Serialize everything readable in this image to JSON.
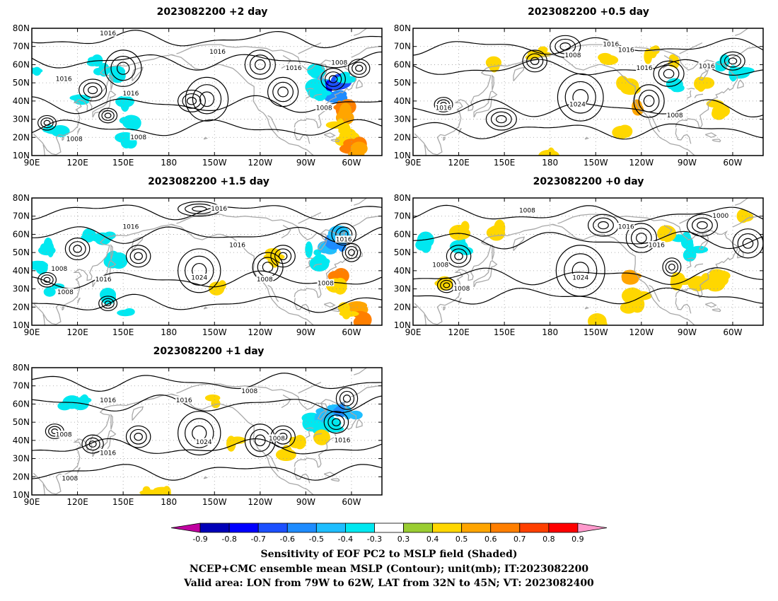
{
  "panels": [
    {
      "title": "2023082200 +2 day",
      "contour_labels": [
        "1016",
        "1016",
        "1016",
        "1016",
        "1008",
        "1008",
        "1008",
        "1016",
        "1008"
      ],
      "sensitivity": [
        {
          "lon": 135,
          "lat": 57,
          "v": -0.4
        },
        {
          "lon": 130,
          "lat": 62,
          "v": -0.4
        },
        {
          "lon": 145,
          "lat": 55,
          "v": -0.4
        },
        {
          "lon": 92,
          "lat": 55,
          "v": -0.4
        },
        {
          "lon": 155,
          "lat": 28,
          "v": -0.4
        },
        {
          "lon": 154,
          "lat": 18,
          "v": -0.4
        },
        {
          "lon": 105,
          "lat": 25,
          "v": -0.4
        },
        {
          "lon": 120,
          "lat": 40,
          "v": -0.4
        },
        {
          "lon": 148,
          "lat": 38,
          "v": -0.4
        },
        {
          "lon": -85,
          "lat": 55,
          "v": -0.4
        },
        {
          "lon": -78,
          "lat": 50,
          "v": -0.5
        },
        {
          "lon": -74,
          "lat": 44,
          "v": -0.6
        },
        {
          "lon": -72,
          "lat": 47,
          "v": -0.8
        },
        {
          "lon": -68,
          "lat": 50,
          "v": -0.7
        },
        {
          "lon": -70,
          "lat": 42,
          "v": -0.6
        },
        {
          "lon": -63,
          "lat": 54,
          "v": -0.4
        },
        {
          "lon": -82,
          "lat": 46,
          "v": -0.4
        },
        {
          "lon": -65,
          "lat": 36,
          "v": 0.6
        },
        {
          "lon": -62,
          "lat": 33,
          "v": 0.5
        },
        {
          "lon": -68,
          "lat": 25,
          "v": 0.4
        },
        {
          "lon": -63,
          "lat": 20,
          "v": 0.4
        },
        {
          "lon": -58,
          "lat": 15,
          "v": 0.6
        },
        {
          "lon": -55,
          "lat": 12,
          "v": 0.5
        }
      ]
    },
    {
      "title": "2023082200 +0.5 day",
      "contour_labels": [
        "1016",
        "1008",
        "1016",
        "1016",
        "1024",
        "1016",
        "1008",
        "1016"
      ],
      "sensitivity": [
        {
          "lon": -65,
          "lat": 60,
          "v": -0.4
        },
        {
          "lon": -56,
          "lat": 55,
          "v": -0.4
        },
        {
          "lon": -95,
          "lat": 48,
          "v": -0.4
        },
        {
          "lon": -80,
          "lat": 48,
          "v": 0.4
        },
        {
          "lon": -72,
          "lat": 38,
          "v": 0.4
        },
        {
          "lon": -68,
          "lat": 34,
          "v": 0.4
        },
        {
          "lon": -122,
          "lat": 35,
          "v": 0.5
        },
        {
          "lon": -130,
          "lat": 48,
          "v": 0.4
        },
        {
          "lon": -112,
          "lat": 66,
          "v": 0.4
        },
        {
          "lon": -145,
          "lat": 62,
          "v": 0.4
        },
        {
          "lon": 172,
          "lat": 66,
          "v": 0.4
        },
        {
          "lon": 178,
          "lat": 12,
          "v": 0.4
        },
        {
          "lon": -130,
          "lat": 22,
          "v": 0.4
        },
        {
          "lon": 140,
          "lat": 62,
          "v": 0.4
        },
        {
          "lon": -96,
          "lat": 62,
          "v": 0.4
        }
      ]
    },
    {
      "title": "2023082200 +1.5 day",
      "contour_labels": [
        "1016",
        "1016",
        "1016",
        "1008",
        "1008",
        "1024",
        "1008",
        "1016",
        "1008",
        "1016"
      ],
      "sensitivity": [
        {
          "lon": 128,
          "lat": 60,
          "v": -0.4
        },
        {
          "lon": 138,
          "lat": 58,
          "v": -0.4
        },
        {
          "lon": 100,
          "lat": 52,
          "v": -0.4
        },
        {
          "lon": 93,
          "lat": 42,
          "v": -0.4
        },
        {
          "lon": 104,
          "lat": 30,
          "v": -0.4
        },
        {
          "lon": 146,
          "lat": 46,
          "v": -0.4
        },
        {
          "lon": 140,
          "lat": 26,
          "v": -0.4
        },
        {
          "lon": 152,
          "lat": 18,
          "v": -0.4
        },
        {
          "lon": -85,
          "lat": 50,
          "v": -0.4
        },
        {
          "lon": -75,
          "lat": 52,
          "v": -0.5
        },
        {
          "lon": -70,
          "lat": 56,
          "v": -0.6
        },
        {
          "lon": -66,
          "lat": 60,
          "v": -0.5
        },
        {
          "lon": -80,
          "lat": 44,
          "v": -0.4
        },
        {
          "lon": -68,
          "lat": 36,
          "v": 0.6
        },
        {
          "lon": -70,
          "lat": 30,
          "v": 0.4
        },
        {
          "lon": -58,
          "lat": 20,
          "v": 0.5
        },
        {
          "lon": -55,
          "lat": 14,
          "v": 0.6
        },
        {
          "lon": -62,
          "lat": 18,
          "v": 0.4
        },
        {
          "lon": -147,
          "lat": 30,
          "v": 0.4
        },
        {
          "lon": -108,
          "lat": 48,
          "v": 0.4
        }
      ]
    },
    {
      "title": "2023082200 +0 day",
      "contour_labels": [
        "1008",
        "1000",
        "1016",
        "1016",
        "1008",
        "1008",
        "1024"
      ],
      "sensitivity": [
        {
          "lon": 97,
          "lat": 55,
          "v": -0.4
        },
        {
          "lon": 122,
          "lat": 53,
          "v": -0.4
        },
        {
          "lon": -85,
          "lat": 50,
          "v": -0.4
        },
        {
          "lon": -92,
          "lat": 56,
          "v": -0.4
        },
        {
          "lon": 145,
          "lat": 62,
          "v": 0.4
        },
        {
          "lon": -127,
          "lat": 35,
          "v": 0.5
        },
        {
          "lon": -123,
          "lat": 28,
          "v": 0.4
        },
        {
          "lon": -125,
          "lat": 20,
          "v": 0.4
        },
        {
          "lon": -95,
          "lat": 33,
          "v": 0.4
        },
        {
          "lon": -80,
          "lat": 34,
          "v": 0.4
        },
        {
          "lon": -75,
          "lat": 32,
          "v": 0.4
        },
        {
          "lon": -70,
          "lat": 36,
          "v": 0.4
        },
        {
          "lon": -55,
          "lat": 69,
          "v": 0.4
        },
        {
          "lon": -105,
          "lat": 62,
          "v": 0.4
        },
        {
          "lon": -148,
          "lat": 12,
          "v": 0.4
        },
        {
          "lon": 122,
          "lat": 62,
          "v": 0.4
        },
        {
          "lon": 110,
          "lat": 35,
          "v": 0.4
        }
      ]
    },
    {
      "title": "2023082200 +1 day",
      "contour_labels": [
        "1016",
        "1016",
        "1008",
        "1008",
        "1016",
        "1024",
        "1008",
        "1016",
        "1008"
      ],
      "sensitivity": [
        {
          "lon": 113,
          "lat": 60,
          "v": -0.4
        },
        {
          "lon": 125,
          "lat": 62,
          "v": -0.4
        },
        {
          "lon": -85,
          "lat": 50,
          "v": -0.4
        },
        {
          "lon": -78,
          "lat": 54,
          "v": -0.5
        },
        {
          "lon": -72,
          "lat": 56,
          "v": -0.5
        },
        {
          "lon": -66,
          "lat": 58,
          "v": -0.6
        },
        {
          "lon": -60,
          "lat": 56,
          "v": -0.5
        },
        {
          "lon": -80,
          "lat": 46,
          "v": -0.4
        },
        {
          "lon": -70,
          "lat": 48,
          "v": -0.4
        },
        {
          "lon": -138,
          "lat": 38,
          "v": 0.4
        },
        {
          "lon": -78,
          "lat": 40,
          "v": 0.4
        },
        {
          "lon": 175,
          "lat": 12,
          "v": 0.4
        },
        {
          "lon": 168,
          "lat": 11,
          "v": 0.4
        },
        {
          "lon": -102,
          "lat": 32,
          "v": 0.4
        },
        {
          "lon": -97,
          "lat": 38,
          "v": 0.4
        },
        {
          "lon": -150,
          "lat": 62,
          "v": 0.4
        }
      ]
    }
  ],
  "axes": {
    "lon_ticks": [
      "90E",
      "120E",
      "150E",
      "180",
      "150W",
      "120W",
      "90W",
      "60W"
    ],
    "lat_ticks": [
      "10N",
      "20N",
      "30N",
      "40N",
      "50N",
      "60N",
      "70N",
      "80N"
    ],
    "lon_range_deg_east": [
      90,
      320
    ],
    "lat_range": [
      10,
      80
    ]
  },
  "colorbar": {
    "levels": [
      "-0.9",
      "-0.8",
      "-0.7",
      "-0.6",
      "-0.5",
      "-0.4",
      "-0.3",
      "0.3",
      "0.4",
      "0.5",
      "0.6",
      "0.7",
      "0.8",
      "0.9"
    ],
    "colors": [
      "#c000a0",
      "#0000b8",
      "#0000ff",
      "#1c50ff",
      "#1e8cff",
      "#1ebeff",
      "#00e8f0",
      "#ffffff",
      "#9acd32",
      "#ffd700",
      "#ffa500",
      "#ff7f00",
      "#ff4000",
      "#ff0000",
      "#ff99cc"
    ]
  },
  "caption": {
    "line1": "Sensitivity of EOF PC2 to MSLP field (Shaded)",
    "line2": "NCEP+CMC ensemble mean MSLP (Contour); unit(mb); IT:2023082200",
    "line3": "Valid area: LON from 79W to 62W, LAT from 32N to 45N; VT: 2023082400"
  }
}
